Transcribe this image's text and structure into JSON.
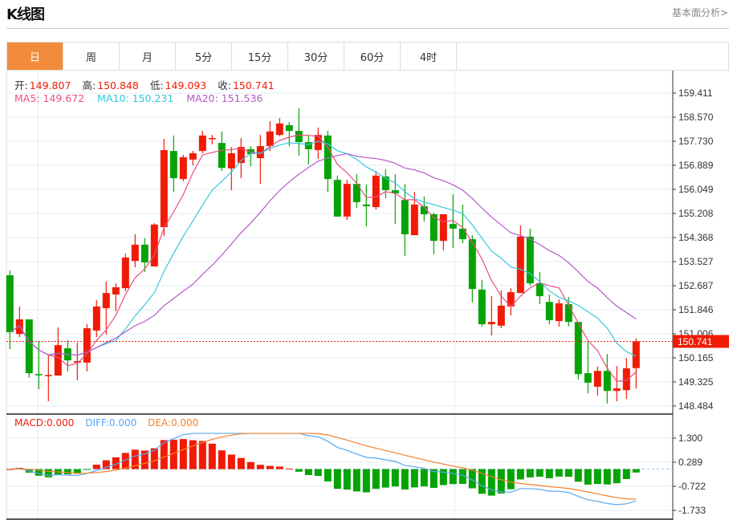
{
  "header": {
    "title": "K线图",
    "fundamental_link": "基本面分析>"
  },
  "tabs": [
    {
      "label": "日",
      "active": true
    },
    {
      "label": "周"
    },
    {
      "label": "月"
    },
    {
      "label": "5分"
    },
    {
      "label": "15分"
    },
    {
      "label": "30分"
    },
    {
      "label": "60分"
    },
    {
      "label": "4时"
    }
  ],
  "legend": {
    "open_label": "开:",
    "open": "149.807",
    "high_label": "高:",
    "high": "150.848",
    "low_label": "低:",
    "low": "149.093",
    "close_label": "收:",
    "close": "150.741",
    "ma5": "MA5: 149.672",
    "ma10": "MA10: 150.231",
    "ma20": "MA20: 151.536"
  },
  "macd_legend": {
    "macd": "MACD:0.000",
    "diff": "DIFF:0.000",
    "dea": "DEA:0.000"
  },
  "current_price": "150.741",
  "colors": {
    "up": "#f01b06",
    "down": "#05a305",
    "ma5": "#ec4f82",
    "ma10": "#35c8dc",
    "ma20": "#b65ac8",
    "diff": "#5aa8f0",
    "dea": "#f5822a",
    "accent": "#f28c3c"
  },
  "chart_data": {
    "type": "candlestick",
    "y_ticks": [
      "159.411",
      "158.570",
      "157.730",
      "156.889",
      "156.049",
      "155.208",
      "154.368",
      "153.527",
      "152.687",
      "151.846",
      "151.006",
      "150.165",
      "149.325",
      "148.484"
    ],
    "ylim": [
      148.484,
      159.411
    ],
    "macd_ticks": [
      "1.300",
      "0.289",
      "-0.722",
      "-1.733"
    ],
    "macd_ylim": [
      -1.733,
      1.3
    ],
    "ohlc": [
      [
        153.05,
        153.22,
        150.47,
        151.06
      ],
      [
        151.0,
        151.96,
        150.89,
        151.51
      ],
      [
        151.51,
        151.51,
        149.47,
        149.63
      ],
      [
        149.6,
        150.75,
        149.07,
        149.58
      ],
      [
        149.55,
        150.25,
        148.65,
        149.57
      ],
      [
        149.55,
        151.23,
        149.55,
        150.61
      ],
      [
        150.5,
        150.78,
        149.69,
        150.08
      ],
      [
        150.0,
        150.7,
        149.38,
        150.05
      ],
      [
        150.0,
        151.34,
        149.69,
        151.2
      ],
      [
        151.12,
        152.18,
        150.89,
        151.96
      ],
      [
        151.9,
        152.83,
        150.98,
        152.43
      ],
      [
        152.38,
        152.77,
        151.79,
        152.63
      ],
      [
        152.6,
        153.81,
        152.49,
        153.67
      ],
      [
        153.55,
        154.48,
        153.33,
        154.12
      ],
      [
        154.12,
        154.34,
        153.16,
        153.5
      ],
      [
        153.36,
        154.87,
        153.36,
        154.82
      ],
      [
        154.73,
        157.81,
        154.42,
        157.42
      ],
      [
        157.39,
        157.93,
        155.96,
        156.44
      ],
      [
        156.41,
        157.25,
        156.33,
        157.17
      ],
      [
        157.09,
        157.39,
        156.89,
        157.31
      ],
      [
        157.39,
        158.09,
        157.31,
        157.93
      ],
      [
        157.81,
        157.95,
        157.62,
        157.84
      ],
      [
        157.67,
        158.07,
        156.69,
        156.8
      ],
      [
        156.78,
        157.53,
        156.02,
        157.31
      ],
      [
        156.97,
        157.84,
        156.44,
        157.53
      ],
      [
        157.45,
        157.56,
        156.86,
        157.28
      ],
      [
        157.14,
        157.95,
        156.24,
        157.56
      ],
      [
        157.56,
        158.43,
        157.39,
        158.07
      ],
      [
        157.95,
        158.54,
        157.9,
        158.35
      ],
      [
        158.29,
        158.4,
        157.56,
        158.09
      ],
      [
        158.09,
        158.88,
        157.23,
        157.7
      ],
      [
        157.7,
        157.95,
        156.92,
        157.45
      ],
      [
        157.42,
        158.21,
        157.11,
        157.95
      ],
      [
        157.93,
        158.09,
        155.96,
        156.41
      ],
      [
        156.38,
        156.53,
        155.1,
        155.1
      ],
      [
        155.1,
        156.38,
        154.98,
        156.24
      ],
      [
        156.24,
        156.58,
        155.4,
        155.6
      ],
      [
        155.52,
        156.22,
        154.76,
        155.46
      ],
      [
        155.43,
        156.69,
        155.35,
        156.53
      ],
      [
        156.5,
        156.75,
        155.74,
        156.02
      ],
      [
        156.02,
        156.58,
        154.84,
        155.91
      ],
      [
        155.68,
        156.24,
        153.72,
        154.48
      ],
      [
        154.45,
        155.96,
        154.45,
        155.52
      ],
      [
        155.46,
        155.8,
        154.93,
        155.18
      ],
      [
        155.18,
        155.24,
        153.78,
        154.25
      ],
      [
        154.25,
        155.18,
        153.92,
        155.18
      ],
      [
        154.84,
        155.88,
        154.0,
        154.68
      ],
      [
        154.68,
        155.52,
        154.17,
        154.31
      ],
      [
        154.31,
        154.45,
        152.1,
        152.57
      ],
      [
        152.55,
        152.88,
        151.26,
        151.34
      ],
      [
        151.34,
        152.32,
        150.95,
        151.42
      ],
      [
        151.29,
        152.52,
        151.2,
        151.99
      ],
      [
        151.96,
        152.6,
        151.65,
        152.46
      ],
      [
        152.43,
        154.79,
        152.43,
        154.4
      ],
      [
        154.4,
        154.68,
        152.69,
        152.77
      ],
      [
        152.77,
        153.16,
        152.04,
        152.32
      ],
      [
        152.12,
        152.38,
        151.34,
        151.48
      ],
      [
        151.45,
        152.21,
        151.26,
        152.07
      ],
      [
        152.04,
        152.29,
        151.26,
        151.42
      ],
      [
        151.42,
        151.42,
        149.41,
        149.6
      ],
      [
        149.63,
        150.75,
        148.93,
        149.3
      ],
      [
        149.16,
        149.86,
        148.85,
        149.71
      ],
      [
        149.71,
        150.3,
        148.57,
        149.01
      ],
      [
        149.01,
        149.88,
        148.65,
        149.1
      ],
      [
        149.04,
        150.16,
        148.73,
        149.8
      ],
      [
        149.807,
        150.848,
        149.093,
        150.741
      ]
    ]
  }
}
